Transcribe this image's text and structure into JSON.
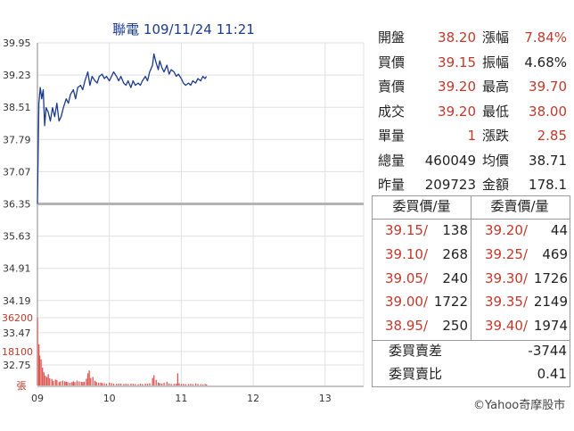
{
  "title": "聯電 109/11/24 11:21",
  "quote_rows": [
    {
      "l1": "開盤",
      "v1": "38.20",
      "c1": "red",
      "l2": "漲幅",
      "v2": "7.84%",
      "c2": "red"
    },
    {
      "l1": "買價",
      "v1": "39.15",
      "c1": "red",
      "l2": "振幅",
      "v2": "4.68%",
      "c2": "blk"
    },
    {
      "l1": "賣價",
      "v1": "39.20",
      "c1": "red",
      "l2": "最高",
      "v2": "39.70",
      "c2": "red"
    },
    {
      "l1": "成交",
      "v1": "39.20",
      "c1": "red",
      "l2": "最低",
      "v2": "38.00",
      "c2": "red"
    },
    {
      "l1": "單量",
      "v1": "1",
      "c1": "red",
      "l2": "漲跌",
      "v2": "2.85",
      "c2": "red"
    },
    {
      "l1": "總量",
      "v1": "460049",
      "c1": "blk",
      "l2": "均價",
      "v2": "38.71",
      "c2": "blk"
    },
    {
      "l1": "昨量",
      "v1": "209723",
      "c1": "blk",
      "l2": "金額",
      "v2": "178.1",
      "c2": "blk"
    }
  ],
  "order_book": {
    "bid_header": "委買價/量",
    "ask_header": "委賣價/量",
    "rows": [
      {
        "bid_price": "39.15",
        "bid_vol": "138",
        "ask_price": "39.20",
        "ask_vol": "44"
      },
      {
        "bid_price": "39.10",
        "bid_vol": "268",
        "ask_price": "39.25",
        "ask_vol": "469"
      },
      {
        "bid_price": "39.05",
        "bid_vol": "240",
        "ask_price": "39.30",
        "ask_vol": "1726"
      },
      {
        "bid_price": "39.00",
        "bid_vol": "1722",
        "ask_price": "39.35",
        "ask_vol": "2149"
      },
      {
        "bid_price": "38.95",
        "bid_vol": "250",
        "ask_price": "39.40",
        "ask_vol": "1974"
      }
    ],
    "diff_label": "委買賣差",
    "diff_value": "-3744",
    "ratio_label": "委買賣比",
    "ratio_value": "0.41"
  },
  "copyright": "©Yahoo奇摩股市",
  "colors": {
    "price_line": "#1a3a8a",
    "volume": "#d9534f",
    "up": "#c0392b",
    "reference": "#b3b3b3",
    "grid": "#e0e0e0"
  },
  "chart_data": {
    "type": "line",
    "title": "聯電 109/11/24 11:21",
    "x_ticks": [
      "09",
      "10",
      "11",
      "12",
      "13"
    ],
    "x_range_hours": [
      9,
      13.5
    ],
    "price": {
      "y_ticks": [
        "39.95",
        "39.23",
        "38.51",
        "37.79",
        "37.07",
        "36.35",
        "35.63",
        "34.91",
        "34.19",
        "33.47",
        "32.75"
      ],
      "ylim": [
        32.75,
        39.95
      ],
      "reference": 36.35,
      "series": [
        [
          9.0,
          36.35
        ],
        [
          9.02,
          38.6
        ],
        [
          9.04,
          38.95
        ],
        [
          9.06,
          38.7
        ],
        [
          9.08,
          38.9
        ],
        [
          9.1,
          38.1
        ],
        [
          9.12,
          38.5
        ],
        [
          9.15,
          38.4
        ],
        [
          9.18,
          38.2
        ],
        [
          9.21,
          38.5
        ],
        [
          9.24,
          38.3
        ],
        [
          9.27,
          38.6
        ],
        [
          9.3,
          38.2
        ],
        [
          9.33,
          38.3
        ],
        [
          9.36,
          38.5
        ],
        [
          9.4,
          38.7
        ],
        [
          9.43,
          38.6
        ],
        [
          9.46,
          38.8
        ],
        [
          9.5,
          38.9
        ],
        [
          9.53,
          38.7
        ],
        [
          9.56,
          38.95
        ],
        [
          9.6,
          39.0
        ],
        [
          9.63,
          38.9
        ],
        [
          9.66,
          39.1
        ],
        [
          9.7,
          39.3
        ],
        [
          9.73,
          39.0
        ],
        [
          9.76,
          39.2
        ],
        [
          9.8,
          39.1
        ],
        [
          9.83,
          39.05
        ],
        [
          9.86,
          39.2
        ],
        [
          9.9,
          39.25
        ],
        [
          9.93,
          39.15
        ],
        [
          9.96,
          39.2
        ],
        [
          10.0,
          39.1
        ],
        [
          10.03,
          39.2
        ],
        [
          10.06,
          39.3
        ],
        [
          10.1,
          39.2
        ],
        [
          10.13,
          39.1
        ],
        [
          10.16,
          39.2
        ],
        [
          10.2,
          39.05
        ],
        [
          10.23,
          39.0
        ],
        [
          10.26,
          39.1
        ],
        [
          10.3,
          38.95
        ],
        [
          10.33,
          39.1
        ],
        [
          10.36,
          39.0
        ],
        [
          10.4,
          39.05
        ],
        [
          10.43,
          39.0
        ],
        [
          10.46,
          39.1
        ],
        [
          10.5,
          39.2
        ],
        [
          10.53,
          39.1
        ],
        [
          10.56,
          39.3
        ],
        [
          10.6,
          39.45
        ],
        [
          10.62,
          39.7
        ],
        [
          10.65,
          39.5
        ],
        [
          10.68,
          39.35
        ],
        [
          10.7,
          39.55
        ],
        [
          10.73,
          39.4
        ],
        [
          10.76,
          39.3
        ],
        [
          10.8,
          39.45
        ],
        [
          10.83,
          39.25
        ],
        [
          10.86,
          39.35
        ],
        [
          10.9,
          39.3
        ],
        [
          10.93,
          39.2
        ],
        [
          10.96,
          39.25
        ],
        [
          11.0,
          39.15
        ],
        [
          11.03,
          39.05
        ],
        [
          11.06,
          39.0
        ],
        [
          11.1,
          39.05
        ],
        [
          11.13,
          39.0
        ],
        [
          11.16,
          39.1
        ],
        [
          11.2,
          39.05
        ],
        [
          11.23,
          39.15
        ],
        [
          11.27,
          39.1
        ],
        [
          11.3,
          39.2
        ],
        [
          11.33,
          39.15
        ],
        [
          11.35,
          39.2
        ]
      ]
    },
    "volume": {
      "y_ticks": [
        "36200",
        "18100"
      ],
      "unit_label": "張",
      "ylim": [
        0,
        36200
      ],
      "series": [
        [
          9.0,
          36200
        ],
        [
          9.02,
          22000
        ],
        [
          9.03,
          16000
        ],
        [
          9.05,
          14000
        ],
        [
          9.07,
          9500
        ],
        [
          9.09,
          7000
        ],
        [
          9.11,
          5200
        ],
        [
          9.13,
          4500
        ],
        [
          9.15,
          6000
        ],
        [
          9.17,
          3800
        ],
        [
          9.2,
          3500
        ],
        [
          9.22,
          2500
        ],
        [
          9.25,
          3200
        ],
        [
          9.27,
          2800
        ],
        [
          9.3,
          1800
        ],
        [
          9.32,
          2200
        ],
        [
          9.35,
          2600
        ],
        [
          9.38,
          2200
        ],
        [
          9.4,
          2000
        ],
        [
          9.42,
          1800
        ],
        [
          9.45,
          1500
        ],
        [
          9.48,
          1800
        ],
        [
          9.5,
          2200
        ],
        [
          9.52,
          1800
        ],
        [
          9.55,
          2600
        ],
        [
          9.58,
          2200
        ],
        [
          9.61,
          2000
        ],
        [
          9.63,
          1800
        ],
        [
          9.65,
          2000
        ],
        [
          9.68,
          3600
        ],
        [
          9.7,
          6500
        ],
        [
          9.72,
          8000
        ],
        [
          9.74,
          4000
        ],
        [
          9.77,
          4500
        ],
        [
          9.8,
          2500
        ],
        [
          9.82,
          1800
        ],
        [
          9.85,
          1500
        ],
        [
          9.88,
          1600
        ],
        [
          9.9,
          1300
        ],
        [
          9.93,
          1200
        ],
        [
          9.96,
          1000
        ],
        [
          10.0,
          1500
        ],
        [
          10.03,
          1200
        ],
        [
          10.06,
          1000
        ],
        [
          10.1,
          900
        ],
        [
          10.13,
          1100
        ],
        [
          10.16,
          1000
        ],
        [
          10.2,
          800
        ],
        [
          10.23,
          900
        ],
        [
          10.26,
          800
        ],
        [
          10.3,
          1000
        ],
        [
          10.33,
          900
        ],
        [
          10.36,
          800
        ],
        [
          10.4,
          700
        ],
        [
          10.43,
          900
        ],
        [
          10.46,
          800
        ],
        [
          10.5,
          1000
        ],
        [
          10.53,
          900
        ],
        [
          10.56,
          1200
        ],
        [
          10.6,
          4000
        ],
        [
          10.62,
          5500
        ],
        [
          10.65,
          3000
        ],
        [
          10.68,
          1600
        ],
        [
          10.7,
          1200
        ],
        [
          10.73,
          1000
        ],
        [
          10.76,
          1500
        ],
        [
          10.8,
          2000
        ],
        [
          10.83,
          1100
        ],
        [
          10.86,
          800
        ],
        [
          10.9,
          900
        ],
        [
          10.93,
          1000
        ],
        [
          10.95,
          6500
        ],
        [
          10.97,
          1200
        ],
        [
          11.0,
          800
        ],
        [
          11.03,
          900
        ],
        [
          11.06,
          700
        ],
        [
          11.1,
          800
        ],
        [
          11.13,
          900
        ],
        [
          11.16,
          700
        ],
        [
          11.2,
          1100
        ],
        [
          11.23,
          800
        ],
        [
          11.27,
          700
        ],
        [
          11.3,
          600
        ],
        [
          11.33,
          800
        ],
        [
          11.35,
          600
        ]
      ]
    }
  }
}
